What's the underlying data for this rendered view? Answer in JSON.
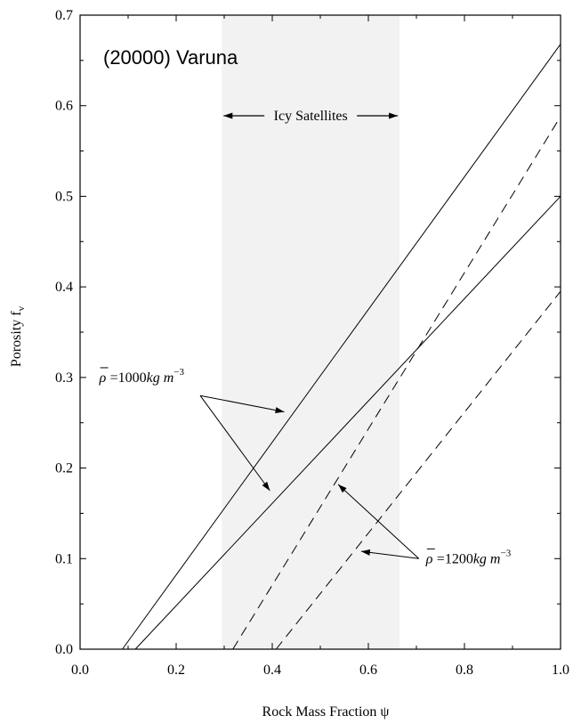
{
  "chart_data": {
    "type": "line",
    "title": "(20000) Varuna",
    "xlabel": "Rock Mass Fraction ψ",
    "ylabel": "Porosity f",
    "ylabel_sub": "v",
    "xlim": [
      0.0,
      1.0
    ],
    "ylim": [
      0.0,
      0.7
    ],
    "x_ticks": [
      "0.0",
      "0.2",
      "0.4",
      "0.6",
      "0.8",
      "1.0"
    ],
    "y_ticks": [
      "0.0",
      "0.1",
      "0.2",
      "0.3",
      "0.4",
      "0.5",
      "0.6",
      "0.7"
    ],
    "grid": false,
    "region": {
      "label": "Icy Satellites",
      "x_start": 0.295,
      "x_end": 0.665,
      "color": "#f2f2f2"
    },
    "series": [
      {
        "style": "solid",
        "x": [
          0.088,
          1.0
        ],
        "y": [
          0.0,
          0.668
        ]
      },
      {
        "style": "solid",
        "x": [
          0.115,
          1.0
        ],
        "y": [
          0.0,
          0.5
        ]
      },
      {
        "style": "dashed",
        "x": [
          0.318,
          1.0
        ],
        "y": [
          0.0,
          0.588
        ]
      },
      {
        "style": "dashed",
        "x": [
          0.408,
          1.0
        ],
        "y": [
          0.0,
          0.395
        ]
      }
    ],
    "annotations": [
      {
        "prefix": "ρ",
        "text": "=1000",
        "units": "kg m",
        "sup": "−3",
        "x": 0.04,
        "y": 0.295,
        "arrow_from": [
          0.25,
          0.28
        ],
        "arrow_to": [
          [
            0.425,
            0.262
          ],
          [
            0.395,
            0.175
          ]
        ]
      },
      {
        "prefix": "ρ",
        "text": "=1200",
        "units": "kg m",
        "sup": "−3",
        "x": 0.72,
        "y": 0.095,
        "arrow_from": [
          0.705,
          0.1
        ],
        "arrow_to": [
          [
            0.537,
            0.182
          ],
          [
            0.585,
            0.108
          ]
        ]
      }
    ]
  }
}
